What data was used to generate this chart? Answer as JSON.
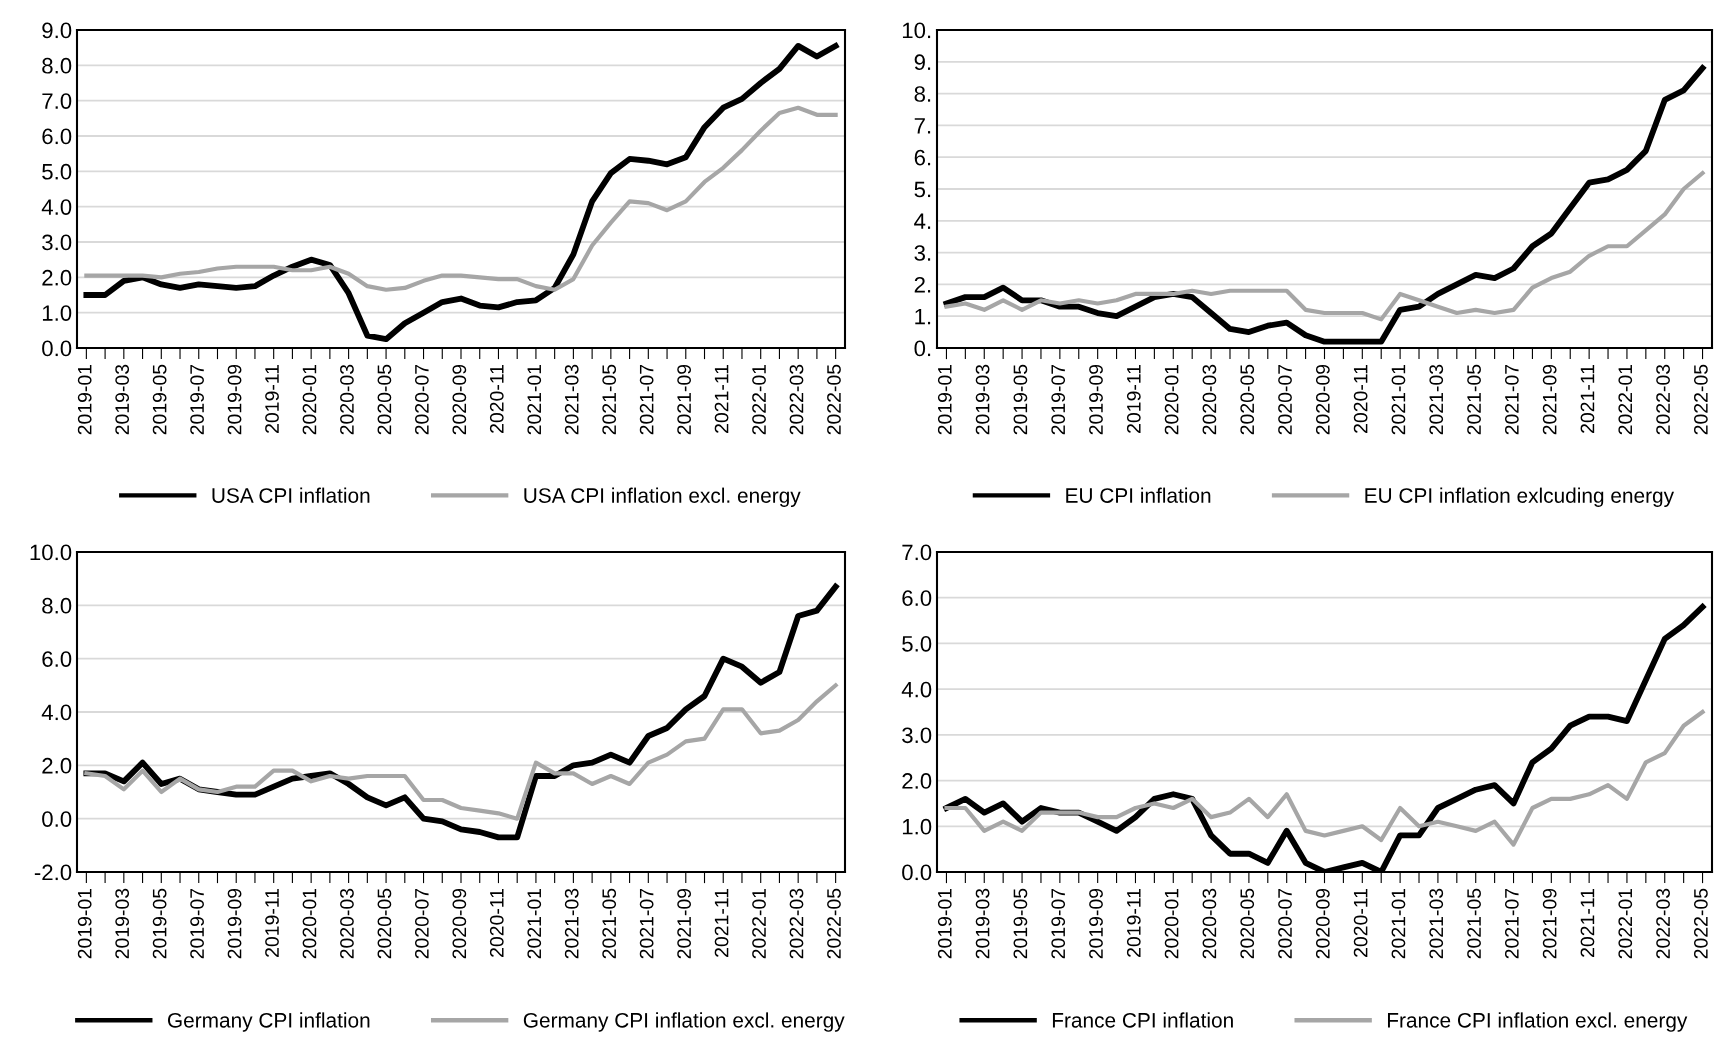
{
  "chart_data": [
    {
      "type": "line",
      "categories": [
        "2019-01",
        null,
        "2019-03",
        null,
        "2019-05",
        null,
        "2019-07",
        null,
        "2019-09",
        null,
        "2019-11",
        null,
        "2020-01",
        null,
        "2020-03",
        null,
        "2020-05",
        null,
        "2020-07",
        null,
        "2020-09",
        null,
        "2020-11",
        null,
        "2021-01",
        null,
        "2021-03",
        null,
        "2021-05",
        null,
        "2021-07",
        null,
        "2021-09",
        null,
        "2021-11",
        null,
        "2022-01",
        null,
        "2022-03",
        null,
        "2022-05"
      ],
      "series": [
        {
          "name": "USA CPI inflation",
          "color": "#000000",
          "values": [
            1.5,
            1.5,
            1.9,
            2.0,
            1.8,
            1.7,
            1.8,
            1.75,
            1.7,
            1.75,
            2.05,
            2.3,
            2.5,
            2.35,
            1.55,
            0.35,
            0.25,
            0.7,
            1.0,
            1.3,
            1.4,
            1.2,
            1.15,
            1.3,
            1.35,
            1.7,
            2.65,
            4.15,
            4.95,
            5.35,
            5.3,
            5.2,
            5.4,
            6.25,
            6.8,
            7.05,
            7.5,
            7.9,
            8.55,
            8.25,
            8.55
          ]
        },
        {
          "name": "USA CPI inflation excl. energy",
          "color": "#a6a6a6",
          "values": [
            2.05,
            2.05,
            2.05,
            2.05,
            2.0,
            2.1,
            2.15,
            2.25,
            2.3,
            2.3,
            2.3,
            2.2,
            2.2,
            2.3,
            2.1,
            1.75,
            1.65,
            1.7,
            1.9,
            2.05,
            2.05,
            2.0,
            1.95,
            1.95,
            1.75,
            1.65,
            1.95,
            2.9,
            3.55,
            4.15,
            4.1,
            3.9,
            4.15,
            4.7,
            5.1,
            5.6,
            6.15,
            6.65,
            6.8,
            6.6,
            6.6
          ]
        }
      ],
      "ylim": [
        0,
        9
      ],
      "yticks": [
        {
          "value": 0,
          "label": "0.0"
        },
        {
          "value": 1,
          "label": "1.0"
        },
        {
          "value": 2,
          "label": "2.0"
        },
        {
          "value": 3,
          "label": "3.0"
        },
        {
          "value": 4,
          "label": "4.0"
        },
        {
          "value": 5,
          "label": "5.0"
        },
        {
          "value": 6,
          "label": "6.0"
        },
        {
          "value": 7,
          "label": "7.0"
        },
        {
          "value": 8,
          "label": "8.0"
        },
        {
          "value": 9,
          "label": "9.0"
        }
      ],
      "grid": "y",
      "legend": "bottom",
      "marker": "none",
      "line_style": "solid"
    },
    {
      "type": "line",
      "categories": [
        "2019-01",
        null,
        "2019-03",
        null,
        "2019-05",
        null,
        "2019-07",
        null,
        "2019-09",
        null,
        "2019-11",
        null,
        "2020-01",
        null,
        "2020-03",
        null,
        "2020-05",
        null,
        "2020-07",
        null,
        "2020-09",
        null,
        "2020-11",
        null,
        "2021-01",
        null,
        "2021-03",
        null,
        "2021-05",
        null,
        "2021-07",
        null,
        "2021-09",
        null,
        "2021-11",
        null,
        "2022-01",
        null,
        "2022-03",
        null,
        "2022-05"
      ],
      "series": [
        {
          "name": "EU CPI inflation",
          "color": "#000000",
          "values": [
            1.4,
            1.6,
            1.6,
            1.9,
            1.5,
            1.5,
            1.3,
            1.3,
            1.1,
            1.0,
            1.3,
            1.6,
            1.7,
            1.6,
            1.1,
            0.6,
            0.5,
            0.7,
            0.8,
            0.4,
            0.2,
            0.2,
            0.2,
            0.2,
            1.2,
            1.3,
            1.7,
            2.0,
            2.3,
            2.2,
            2.5,
            3.2,
            3.6,
            4.4,
            5.2,
            5.3,
            5.6,
            6.2,
            7.8,
            8.1,
            8.8
          ]
        },
        {
          "name": "EU CPI inflation exlcuding energy",
          "color": "#a6a6a6",
          "values": [
            1.3,
            1.4,
            1.2,
            1.5,
            1.2,
            1.5,
            1.4,
            1.5,
            1.4,
            1.5,
            1.7,
            1.7,
            1.7,
            1.8,
            1.7,
            1.8,
            1.8,
            1.8,
            1.8,
            1.2,
            1.1,
            1.1,
            1.1,
            0.9,
            1.7,
            1.5,
            1.3,
            1.1,
            1.2,
            1.1,
            1.2,
            1.9,
            2.2,
            2.4,
            2.9,
            3.2,
            3.2,
            3.7,
            4.2,
            5.0,
            5.5
          ]
        }
      ],
      "ylim": [
        0,
        10
      ],
      "yticks": [
        {
          "value": 0,
          "label": "0."
        },
        {
          "value": 1,
          "label": "1."
        },
        {
          "value": 2,
          "label": "2."
        },
        {
          "value": 3,
          "label": "3."
        },
        {
          "value": 4,
          "label": "4."
        },
        {
          "value": 5,
          "label": "5."
        },
        {
          "value": 6,
          "label": "6."
        },
        {
          "value": 7,
          "label": "7."
        },
        {
          "value": 8,
          "label": "8."
        },
        {
          "value": 9,
          "label": "9."
        },
        {
          "value": 10,
          "label": "10."
        }
      ],
      "grid": "y",
      "legend": "bottom",
      "marker": "none",
      "line_style": "solid"
    },
    {
      "type": "line",
      "categories": [
        "2019-01",
        null,
        "2019-03",
        null,
        "2019-05",
        null,
        "2019-07",
        null,
        "2019-09",
        null,
        "2019-11",
        null,
        "2020-01",
        null,
        "2020-03",
        null,
        "2020-05",
        null,
        "2020-07",
        null,
        "2020-09",
        null,
        "2020-11",
        null,
        "2021-01",
        null,
        "2021-03",
        null,
        "2021-05",
        null,
        "2021-07",
        null,
        "2021-09",
        null,
        "2021-11",
        null,
        "2022-01",
        null,
        "2022-03",
        null,
        "2022-05"
      ],
      "series": [
        {
          "name": "Germany CPI inflation",
          "color": "#000000",
          "values": [
            1.7,
            1.7,
            1.4,
            2.1,
            1.3,
            1.5,
            1.1,
            1.0,
            0.9,
            0.9,
            1.2,
            1.5,
            1.6,
            1.7,
            1.3,
            0.8,
            0.5,
            0.8,
            0.0,
            -0.1,
            -0.4,
            -0.5,
            -0.7,
            -0.7,
            1.6,
            1.6,
            2.0,
            2.1,
            2.4,
            2.1,
            3.1,
            3.4,
            4.1,
            4.6,
            6.0,
            5.7,
            5.1,
            5.5,
            7.6,
            7.8,
            8.7
          ]
        },
        {
          "name": "Germany CPI inflation excl. energy",
          "color": "#a6a6a6",
          "values": [
            1.7,
            1.6,
            1.1,
            1.8,
            1.0,
            1.5,
            1.1,
            1.0,
            1.2,
            1.2,
            1.8,
            1.8,
            1.4,
            1.6,
            1.5,
            1.6,
            1.6,
            1.6,
            0.7,
            0.7,
            0.4,
            0.3,
            0.2,
            0.0,
            2.1,
            1.7,
            1.7,
            1.3,
            1.6,
            1.3,
            2.1,
            2.4,
            2.9,
            3.0,
            4.1,
            4.1,
            3.2,
            3.3,
            3.7,
            4.4,
            5.0
          ]
        }
      ],
      "ylim": [
        -2,
        10
      ],
      "yticks": [
        {
          "value": -2,
          "label": "-2.0"
        },
        {
          "value": 0,
          "label": "0.0"
        },
        {
          "value": 2,
          "label": "2.0"
        },
        {
          "value": 4,
          "label": "4.0"
        },
        {
          "value": 6,
          "label": "6.0"
        },
        {
          "value": 8,
          "label": "8.0"
        },
        {
          "value": 10,
          "label": "10.0"
        }
      ],
      "grid": "y",
      "legend": "bottom",
      "marker": "none",
      "line_style": "solid"
    },
    {
      "type": "line",
      "categories": [
        "2019-01",
        null,
        "2019-03",
        null,
        "2019-05",
        null,
        "2019-07",
        null,
        "2019-09",
        null,
        "2019-11",
        null,
        "2020-01",
        null,
        "2020-03",
        null,
        "2020-05",
        null,
        "2020-07",
        null,
        "2020-09",
        null,
        "2020-11",
        null,
        "2021-01",
        null,
        "2021-03",
        null,
        "2021-05",
        null,
        "2021-07",
        null,
        "2021-09",
        null,
        "2021-11",
        null,
        "2022-01",
        null,
        "2022-03",
        null,
        "2022-05"
      ],
      "series": [
        {
          "name": "France CPI inflation",
          "color": "#000000",
          "values": [
            1.4,
            1.6,
            1.3,
            1.5,
            1.1,
            1.4,
            1.3,
            1.3,
            1.1,
            0.9,
            1.2,
            1.6,
            1.7,
            1.6,
            0.8,
            0.4,
            0.4,
            0.2,
            0.9,
            0.2,
            0.0,
            0.1,
            0.2,
            0.0,
            0.8,
            0.8,
            1.4,
            1.6,
            1.8,
            1.9,
            1.5,
            2.4,
            2.7,
            3.2,
            3.4,
            3.4,
            3.3,
            4.2,
            5.1,
            5.4,
            5.8
          ]
        },
        {
          "name": "France CPI inflation excl. energy",
          "color": "#a6a6a6",
          "values": [
            1.4,
            1.4,
            0.9,
            1.1,
            0.9,
            1.3,
            1.3,
            1.3,
            1.2,
            1.2,
            1.4,
            1.5,
            1.4,
            1.6,
            1.2,
            1.3,
            1.6,
            1.2,
            1.7,
            0.9,
            0.8,
            0.9,
            1.0,
            0.7,
            1.4,
            1.0,
            1.1,
            1.0,
            0.9,
            1.1,
            0.6,
            1.4,
            1.6,
            1.6,
            1.7,
            1.9,
            1.6,
            2.4,
            2.6,
            3.2,
            3.5
          ]
        }
      ],
      "ylim": [
        0,
        7
      ],
      "yticks": [
        {
          "value": 0,
          "label": "0.0"
        },
        {
          "value": 1,
          "label": "1.0"
        },
        {
          "value": 2,
          "label": "2.0"
        },
        {
          "value": 3,
          "label": "3.0"
        },
        {
          "value": 4,
          "label": "4.0"
        },
        {
          "value": 5,
          "label": "5.0"
        },
        {
          "value": 6,
          "label": "6.0"
        },
        {
          "value": 7,
          "label": "7.0"
        }
      ],
      "grid": "y",
      "legend": "bottom",
      "marker": "none",
      "line_style": "solid"
    }
  ]
}
